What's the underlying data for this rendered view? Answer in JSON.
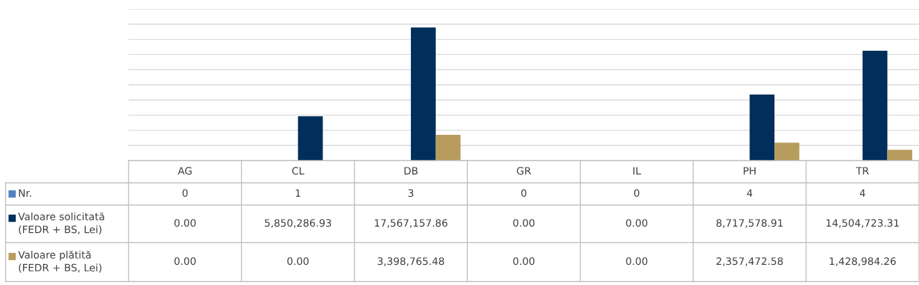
{
  "chart_data": {
    "type": "bar",
    "categories": [
      "AG",
      "CL",
      "DB",
      "GR",
      "IL",
      "PH",
      "TR"
    ],
    "series": [
      {
        "name": "Nr.",
        "color": "#4f81bd",
        "values": [
          0,
          1,
          3,
          0,
          0,
          4,
          4
        ],
        "value_labels": [
          "0",
          "1",
          "3",
          "0",
          "0",
          "4",
          "4"
        ]
      },
      {
        "name": "Valoare solicitată (FEDR + BS, Lei)",
        "color": "#002f5c",
        "values": [
          0.0,
          5850286.93,
          17567157.86,
          0.0,
          0.0,
          8717578.91,
          14504723.31
        ],
        "value_labels": [
          "0.00",
          "5,850,286.93",
          "17,567,157.86",
          "0.00",
          "0.00",
          "8,717,578.91",
          "14,504,723.31"
        ]
      },
      {
        "name": "Valoare plătită (FEDR + BS, Lei)",
        "color": "#b89c5e",
        "values": [
          0.0,
          0.0,
          3398765.48,
          0.0,
          0.0,
          2357472.58,
          1428984.26
        ],
        "value_labels": [
          "0.00",
          "0.00",
          "3,398,765.48",
          "0.00",
          "0.00",
          "2,357,472.58",
          "1,428,984.26"
        ]
      }
    ],
    "ylim": [
      0,
      20000000
    ],
    "yticks": [
      {
        "value": 0,
        "label": null
      },
      {
        "value": 2000000,
        "label": null
      },
      {
        "value": 4000000,
        "label": null
      },
      {
        "value": 6000000,
        "label": null
      },
      {
        "value": 8000000,
        "label": null
      },
      {
        "value": 10000000,
        "label": null
      },
      {
        "value": 12000000,
        "label": null
      },
      {
        "value": 14000000,
        "label": null
      },
      {
        "value": 16000000,
        "label": null
      },
      {
        "value": 18000000,
        "label": null
      },
      {
        "value": 20000000,
        "label": null
      }
    ],
    "grid": "y",
    "legend": "bottom left"
  }
}
